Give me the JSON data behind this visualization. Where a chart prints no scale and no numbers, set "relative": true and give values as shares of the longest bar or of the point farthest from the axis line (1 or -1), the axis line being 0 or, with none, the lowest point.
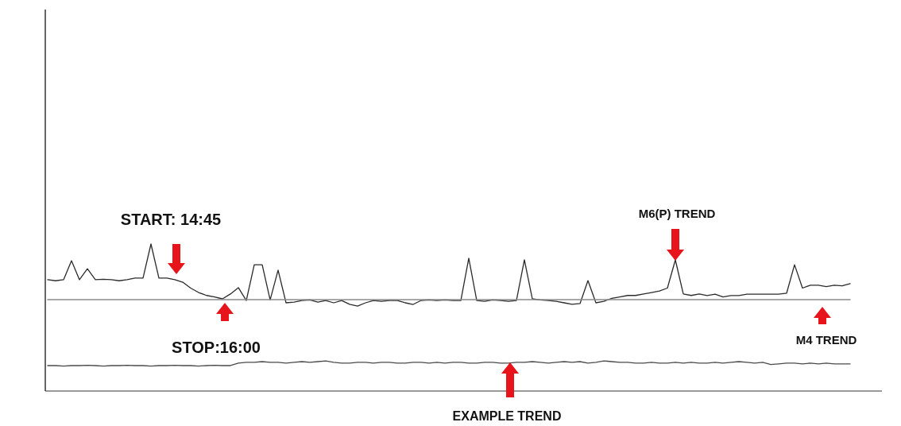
{
  "chart_data": {
    "type": "line",
    "relative": true,
    "categories": [
      null,
      null,
      null,
      null,
      null,
      null,
      null,
      null,
      null,
      null,
      null,
      null,
      null,
      null,
      null,
      null,
      null,
      null,
      null,
      null,
      null,
      null,
      null,
      null,
      null,
      null,
      null,
      null,
      null,
      null,
      null,
      null,
      null,
      null,
      null,
      null,
      null,
      null,
      null,
      null,
      null,
      null,
      null,
      null,
      null,
      null,
      null,
      null,
      null,
      null,
      null,
      null,
      null,
      null,
      null,
      null,
      null,
      null,
      null,
      null,
      null,
      null,
      null,
      null,
      null,
      null,
      null,
      null,
      null,
      null,
      null,
      null,
      null,
      null,
      null,
      null,
      null,
      null,
      null,
      null,
      null,
      null,
      null,
      null,
      null,
      null,
      null,
      null,
      null,
      null,
      null,
      null,
      null,
      null,
      null,
      null,
      null,
      null,
      null,
      null,
      null,
      null
    ],
    "series": [
      {
        "color": "#2b2b2b",
        "values": [
          0.757,
          0.75,
          0.757,
          0.886,
          0.757,
          0.832,
          0.757,
          0.76,
          0.757,
          0.75,
          0.757,
          0.768,
          0.768,
          1.0,
          0.768,
          0.768,
          0.757,
          0.74,
          0.7,
          0.67,
          0.65,
          0.64,
          0.627,
          0.66,
          0.703,
          0.616,
          0.859,
          0.859,
          0.62,
          0.822,
          0.6,
          0.605,
          0.616,
          0.62,
          0.605,
          0.616,
          0.6,
          0.616,
          0.59,
          0.578,
          0.6,
          0.616,
          0.61,
          0.616,
          0.616,
          0.6,
          0.589,
          0.616,
          0.62,
          0.616,
          0.62,
          0.616,
          0.616,
          0.903,
          0.616,
          0.61,
          0.62,
          0.616,
          0.61,
          0.616,
          0.892,
          0.627,
          0.62,
          0.616,
          0.61,
          0.6,
          0.59,
          0.595,
          0.751,
          0.6,
          0.61,
          0.63,
          0.64,
          0.65,
          0.65,
          0.66,
          0.67,
          0.68,
          0.7,
          0.892,
          0.66,
          0.65,
          0.66,
          0.649,
          0.659,
          0.64,
          0.649,
          0.649,
          0.659,
          0.659,
          0.659,
          0.659,
          0.659,
          0.665,
          0.859,
          0.7,
          0.72,
          0.72,
          0.71,
          0.72,
          0.715,
          0.73
        ]
      },
      {
        "color": "#8a8a8a",
        "values": [
          0.622,
          0.622,
          0.622,
          0.622,
          0.622,
          0.622,
          0.622,
          0.622,
          0.622,
          0.622,
          0.622,
          0.622,
          0.622,
          0.622,
          0.622,
          0.622,
          0.622,
          0.622,
          0.622,
          0.622,
          0.622,
          0.622,
          0.622,
          0.622,
          0.622,
          0.622,
          0.622,
          0.622,
          0.622,
          0.622,
          0.622,
          0.622,
          0.622,
          0.622,
          0.622,
          0.622,
          0.622,
          0.622,
          0.622,
          0.622,
          0.622,
          0.622,
          0.622,
          0.622,
          0.622,
          0.622,
          0.622,
          0.622,
          0.622,
          0.622,
          0.622,
          0.622,
          0.622,
          0.622,
          0.622,
          0.622,
          0.622,
          0.622,
          0.622,
          0.622,
          0.622,
          0.622,
          0.622,
          0.622,
          0.622,
          0.622,
          0.622,
          0.622,
          0.622,
          0.622,
          0.622,
          0.622,
          0.622,
          0.622,
          0.622,
          0.622,
          0.622,
          0.622,
          0.622,
          0.622,
          0.622,
          0.622,
          0.622,
          0.622,
          0.622,
          0.622,
          0.622,
          0.622,
          0.622,
          0.622,
          0.622,
          0.622,
          0.622,
          0.622,
          0.622,
          0.622,
          0.622,
          0.622,
          0.622,
          0.622,
          0.622,
          0.622
        ]
      },
      {
        "color": "#4a4a4a",
        "values": [
          0.173,
          0.173,
          0.17,
          0.173,
          0.173,
          0.175,
          0.173,
          0.17,
          0.173,
          0.173,
          0.175,
          0.173,
          0.173,
          0.17,
          0.173,
          0.173,
          0.175,
          0.173,
          0.173,
          0.17,
          0.173,
          0.175,
          0.173,
          0.173,
          0.19,
          0.195,
          0.195,
          0.2,
          0.195,
          0.195,
          0.19,
          0.195,
          0.2,
          0.195,
          0.2,
          0.205,
          0.195,
          0.19,
          0.19,
          0.195,
          0.195,
          0.19,
          0.195,
          0.195,
          0.19,
          0.19,
          0.195,
          0.195,
          0.19,
          0.195,
          0.19,
          0.195,
          0.195,
          0.19,
          0.19,
          0.195,
          0.195,
          0.19,
          0.19,
          0.195,
          0.195,
          0.2,
          0.195,
          0.19,
          0.195,
          0.2,
          0.195,
          0.2,
          0.19,
          0.195,
          0.205,
          0.2,
          0.195,
          0.195,
          0.19,
          0.19,
          0.195,
          0.19,
          0.19,
          0.195,
          0.19,
          0.195,
          0.19,
          0.19,
          0.195,
          0.19,
          0.195,
          0.2,
          0.195,
          0.19,
          0.195,
          0.18,
          0.185,
          0.19,
          0.19,
          0.185,
          0.19,
          0.185,
          0.19,
          0.185,
          0.185,
          0.185
        ]
      }
    ],
    "annotations": [
      "START: 14:45",
      "STOP:16:00",
      "M6(P) TREND",
      "M4 TREND",
      "EXAMPLE TREND"
    ]
  }
}
